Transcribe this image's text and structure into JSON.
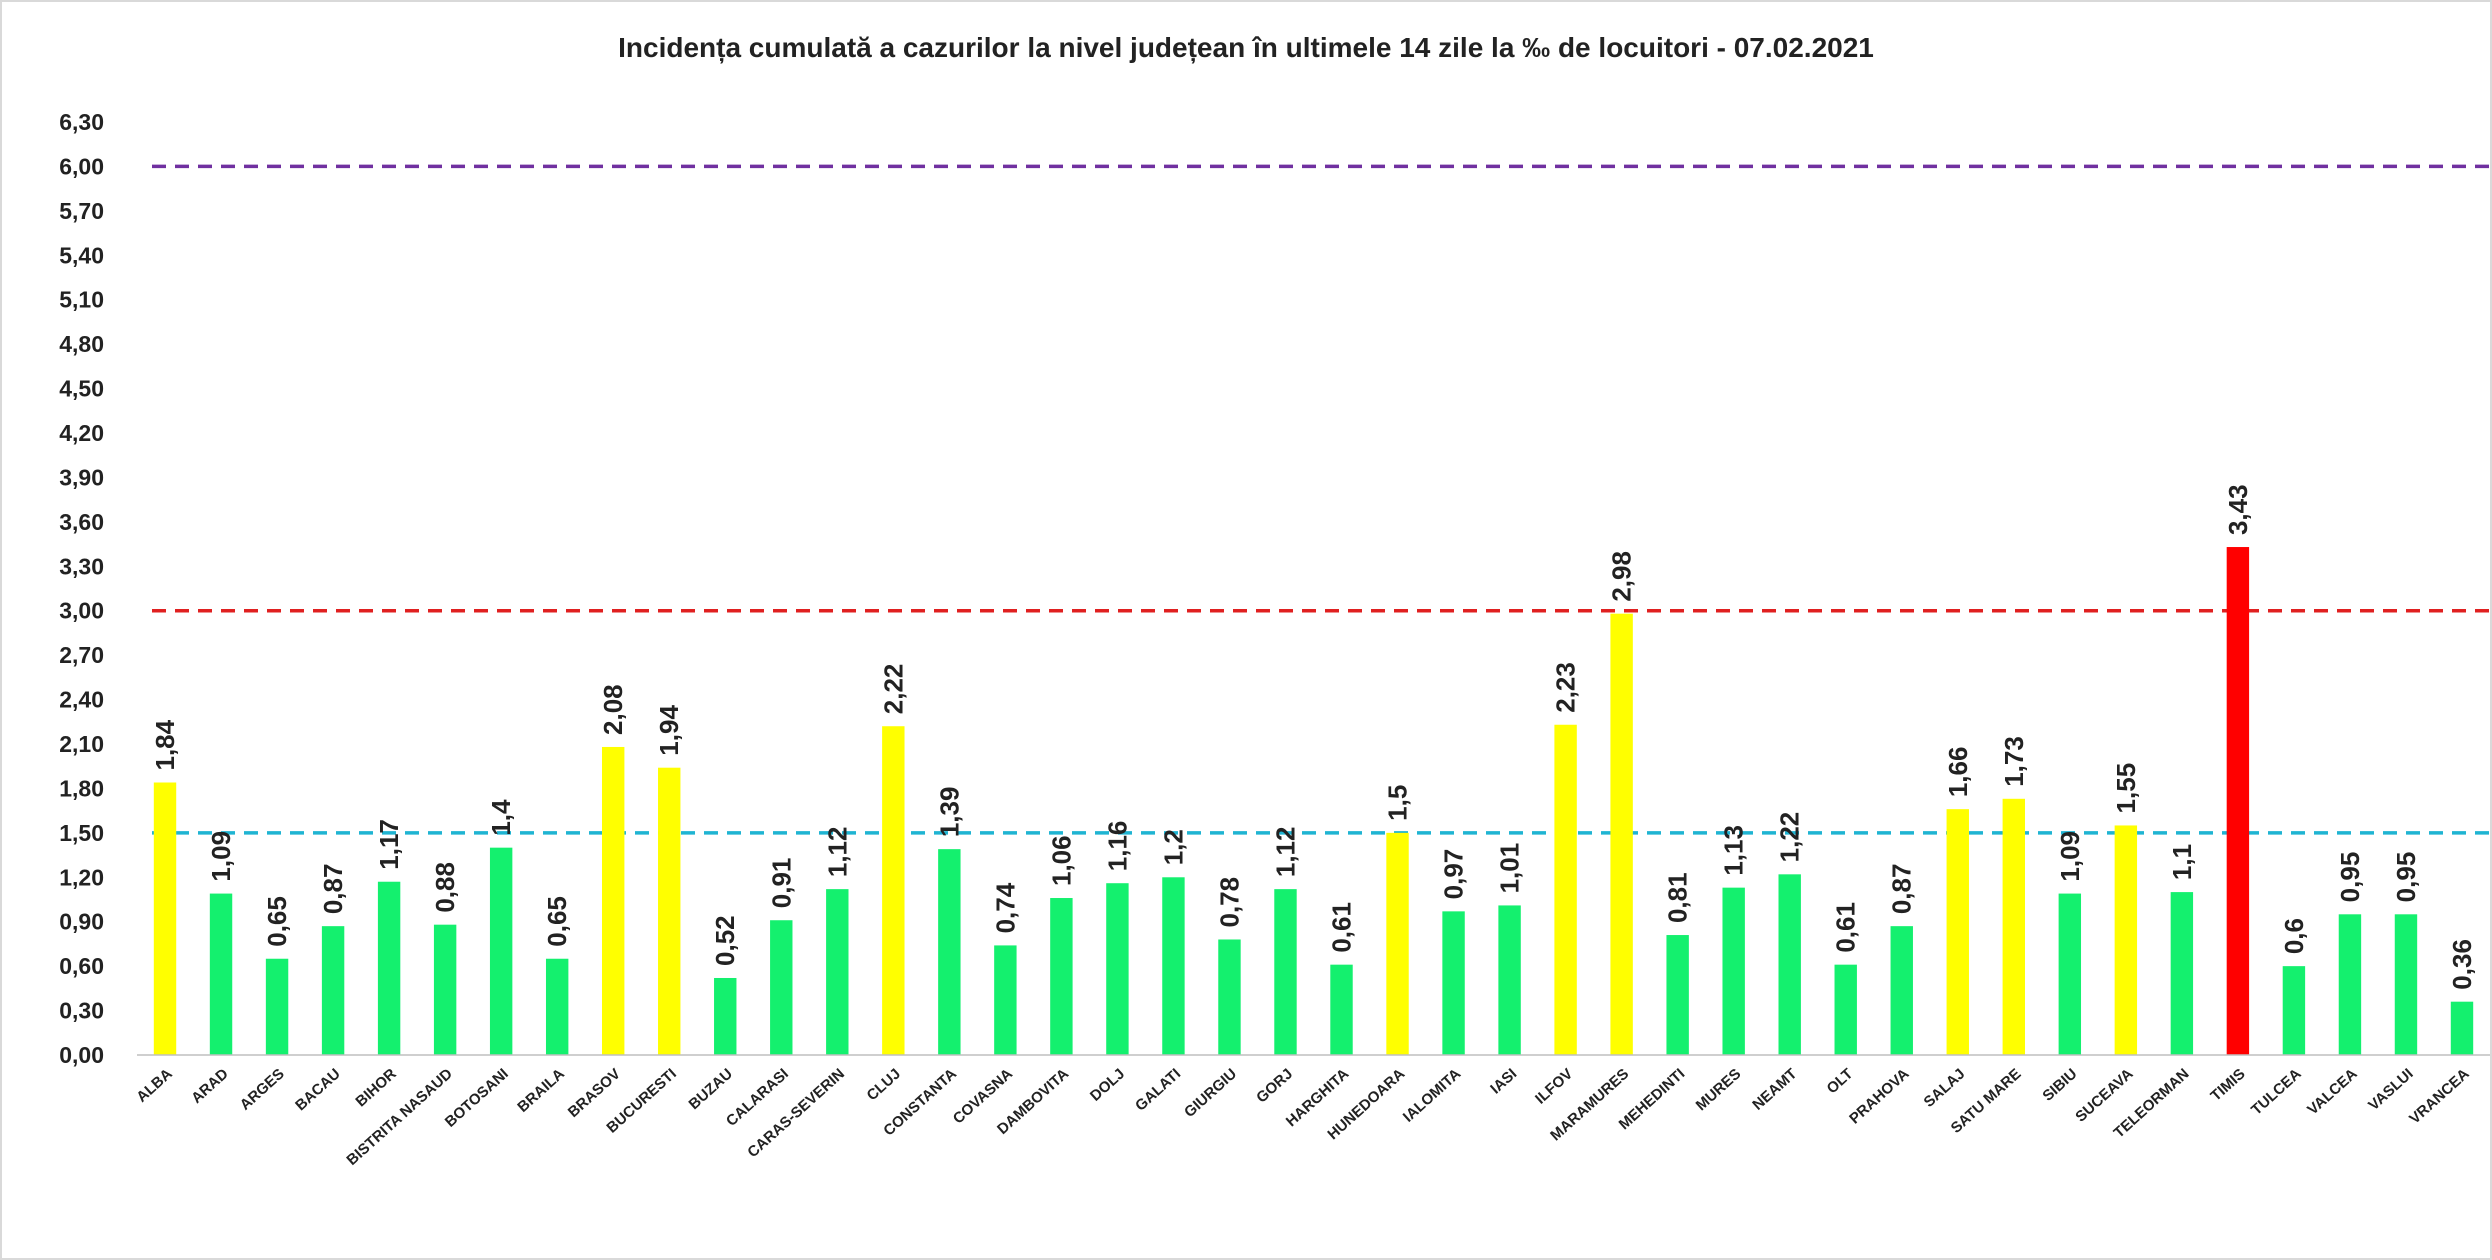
{
  "chart_data": {
    "type": "bar",
    "title": "Incidența cumulată a cazurilor la nivel județean în ultimele 14 zile la ‰ de locuitori - 07.02.2021",
    "xlabel": "",
    "ylabel": "",
    "ylim": [
      0,
      6.3
    ],
    "ytick_labels": [
      "0,00",
      "0,30",
      "0,60",
      "0,90",
      "1,20",
      "1,50",
      "1,80",
      "2,10",
      "2,40",
      "2,70",
      "3,00",
      "3,30",
      "3,60",
      "3,90",
      "4,20",
      "4,50",
      "4,80",
      "5,10",
      "5,40",
      "5,70",
      "6,00",
      "6,30"
    ],
    "grid": false,
    "legend": "none",
    "categories": [
      "ALBA",
      "ARAD",
      "ARGES",
      "BACAU",
      "BIHOR",
      "BISTRITA NASAUD",
      "BOTOSANI",
      "BRAILA",
      "BRASOV",
      "BUCURESTI",
      "BUZAU",
      "CALARASI",
      "CARAS-SEVERIN",
      "CLUJ",
      "CONSTANTA",
      "COVASNA",
      "DAMBOVITA",
      "DOLJ",
      "GALATI",
      "GIURGIU",
      "GORJ",
      "HARGHITA",
      "HUNEDOARA",
      "IALOMITA",
      "IASI",
      "ILFOV",
      "MARAMURES",
      "MEHEDINTI",
      "MURES",
      "NEAMT",
      "OLT",
      "PRAHOVA",
      "SALAJ",
      "SATU MARE",
      "SIBIU",
      "SUCEAVA",
      "TELEORMAN",
      "TIMIS",
      "TULCEA",
      "VALCEA",
      "VASLUI",
      "VRANCEA"
    ],
    "values": [
      1.84,
      1.09,
      0.65,
      0.87,
      1.17,
      0.88,
      1.4,
      0.65,
      2.08,
      1.94,
      0.52,
      0.91,
      1.12,
      2.22,
      1.39,
      0.74,
      1.06,
      1.16,
      1.2,
      0.78,
      1.12,
      0.61,
      1.5,
      0.97,
      1.01,
      2.23,
      2.98,
      0.81,
      1.13,
      1.22,
      0.61,
      0.87,
      1.66,
      1.73,
      1.09,
      1.55,
      1.1,
      3.43,
      0.6,
      0.95,
      0.95,
      0.36
    ],
    "value_labels": [
      "1,84",
      "1,09",
      "0,65",
      "0,87",
      "1,17",
      "0,88",
      "1,4",
      "0,65",
      "2,08",
      "1,94",
      "0,52",
      "0,91",
      "1,12",
      "2,22",
      "1,39",
      "0,74",
      "1,06",
      "1,16",
      "1,2",
      "0,78",
      "1,12",
      "0,61",
      "1,5",
      "0,97",
      "1,01",
      "2,23",
      "2,98",
      "0,81",
      "1,13",
      "1,22",
      "0,61",
      "0,87",
      "1,66",
      "1,73",
      "1,09",
      "1,55",
      "1,1",
      "3,43",
      "0,6",
      "0,95",
      "0,95",
      "0,36"
    ],
    "bar_colors": [
      "#ffff00",
      "#14f06e",
      "#14f06e",
      "#14f06e",
      "#14f06e",
      "#14f06e",
      "#14f06e",
      "#14f06e",
      "#ffff00",
      "#ffff00",
      "#14f06e",
      "#14f06e",
      "#14f06e",
      "#ffff00",
      "#14f06e",
      "#14f06e",
      "#14f06e",
      "#14f06e",
      "#14f06e",
      "#14f06e",
      "#14f06e",
      "#14f06e",
      "#ffff00",
      "#14f06e",
      "#14f06e",
      "#ffff00",
      "#ffff00",
      "#14f06e",
      "#14f06e",
      "#14f06e",
      "#14f06e",
      "#14f06e",
      "#ffff00",
      "#ffff00",
      "#14f06e",
      "#ffff00",
      "#14f06e",
      "#ff0000",
      "#14f06e",
      "#14f06e",
      "#14f06e",
      "#14f06e"
    ],
    "reference_lines": [
      {
        "value": 6.0,
        "color": "#7030a0",
        "style": "dashed"
      },
      {
        "value": 3.0,
        "color": "#e02020",
        "style": "dashed"
      },
      {
        "value": 1.5,
        "color": "#1fb4d2",
        "style": "dashed"
      }
    ]
  }
}
